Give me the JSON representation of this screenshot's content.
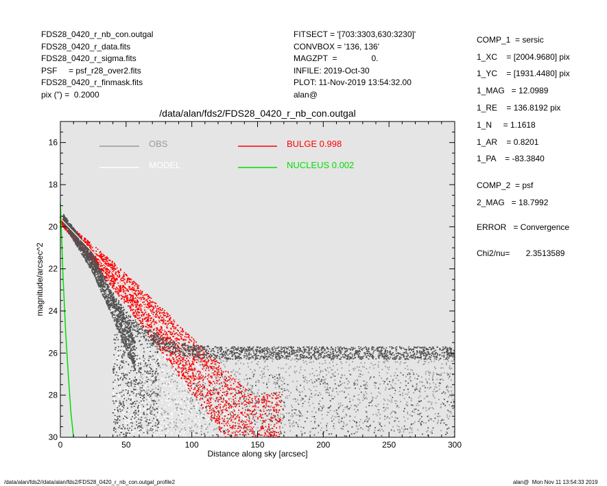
{
  "header_left": [
    "FDS28_0420_r_nb_con.outgal",
    "FDS28_0420_r_data.fits",
    "FDS28_0420_r_sigma.fits",
    "PSF     = psf_r28_over2.fits",
    "FDS28_0420_r_finmask.fits",
    "pix (\") =  0.2000"
  ],
  "header_mid": [
    "FITSECT = '[703:3303,630:3230]'",
    "CONVBOX = '136, 136'",
    "MAGZPT  =               0.",
    "INFILE: 2019-Oct-30",
    "PLOT: 11-Nov-2019 13:54:32.00",
    "alan@"
  ],
  "params": [
    "COMP_1  = sersic",
    "1_XC    = [2004.9680] pix",
    "1_YC    = [1931.4480] pix",
    "1_MAG   = 12.0989",
    "1_RE    = 136.8192 pix",
    "1_N     = 1.1618",
    "1_AR    = 0.8201",
    "1_PA    = -83.3840",
    "COMP_2  = psf",
    "2_MAG   = 18.7992",
    "ERROR   = Convergence",
    "Chi2/nu=       2.3513589"
  ],
  "footer_left": "/data/alan/fds2//data/alan/fds2/FDS28_0420_r_nb_con.outgal_profile2",
  "footer_right": "alan@  Mon Nov 11 13:54:33 2019",
  "colors": {
    "plot_bg": "#e5e5e5",
    "obs_dark": "#505050",
    "obs_light": "#9a9a9a",
    "model": "#ffffff",
    "bulge": "#ff0000",
    "nucleus": "#00dd00"
  },
  "chart_data": {
    "type": "scatter",
    "title": "/data/alan/fds2/FDS28_0420_r_nb_con.outgal",
    "xlabel": "Distance along sky [arcsec]",
    "ylabel": "magnitude/arcsec^2",
    "xlim": [
      0,
      300
    ],
    "ylim": [
      30,
      15
    ],
    "xticks": [
      0,
      50,
      100,
      150,
      200,
      250,
      300
    ],
    "yticks": [
      16,
      18,
      20,
      22,
      24,
      26,
      28,
      30
    ],
    "grid": false,
    "legend": [
      {
        "label": "OBS",
        "color": "#9a9a9a",
        "position": "top-left"
      },
      {
        "label": "MODEL",
        "color": "#ffffff",
        "position": "top-left"
      },
      {
        "label": "BULGE  0.998",
        "color": "#ff0000",
        "position": "top-center"
      },
      {
        "label": "NUCLEUS  0.002",
        "color": "#00dd00",
        "position": "top-center"
      }
    ],
    "series": [
      {
        "name": "OBS",
        "color": "#505050",
        "x": [
          0,
          5,
          10,
          20,
          30,
          40,
          50,
          60,
          70,
          80,
          90,
          100,
          120,
          140,
          160,
          200,
          250,
          300
        ],
        "y": [
          19.3,
          20.1,
          20.6,
          21.5,
          22.4,
          23.4,
          24.3,
          24.9,
          25.3,
          25.6,
          25.8,
          25.9,
          26.0,
          26.0,
          26.0,
          26.0,
          26.0,
          26.0
        ]
      },
      {
        "name": "MODEL",
        "color": "#ffffff",
        "x": [
          0,
          20,
          40,
          60,
          80,
          100,
          120,
          140,
          150
        ],
        "y": [
          19.6,
          20.9,
          22.2,
          23.5,
          24.9,
          26.3,
          27.7,
          29.1,
          29.8
        ]
      },
      {
        "name": "BULGE  0.998",
        "color": "#ff0000",
        "x": [
          0,
          20,
          40,
          60,
          80,
          100,
          120,
          140,
          150
        ],
        "y": [
          19.7,
          21.0,
          22.3,
          23.7,
          25.1,
          26.6,
          28.0,
          29.5,
          30.0
        ]
      },
      {
        "name": "NUCLEUS  0.002",
        "color": "#00dd00",
        "x": [
          0,
          1,
          2,
          4,
          6,
          8,
          10
        ],
        "y": [
          18.9,
          20.5,
          22.3,
          25.0,
          27.0,
          28.8,
          30.0
        ]
      }
    ]
  }
}
